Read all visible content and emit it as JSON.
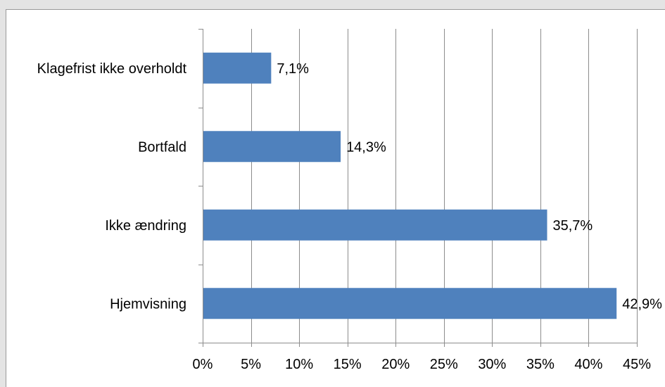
{
  "chart_data": {
    "type": "bar",
    "orientation": "horizontal",
    "categories": [
      "Klagefrist ikke overholdt",
      "Bortfald",
      "Ikke ændring",
      "Hjemvisning"
    ],
    "values": [
      7.1,
      14.3,
      35.7,
      42.9
    ],
    "data_labels": [
      "7,1%",
      "14,3%",
      "35,7%",
      "42,9%"
    ],
    "xlim": [
      0,
      45
    ],
    "x_ticks": [
      0,
      5,
      10,
      15,
      20,
      25,
      30,
      35,
      40,
      45
    ],
    "x_tick_labels": [
      "0%",
      "5%",
      "10%",
      "15%",
      "20%",
      "25%",
      "30%",
      "35%",
      "40%",
      "45%"
    ],
    "grid": "vertical",
    "legend": "none",
    "bar_color": "#4f81bd",
    "gridline_color": "#8c8c8c"
  }
}
